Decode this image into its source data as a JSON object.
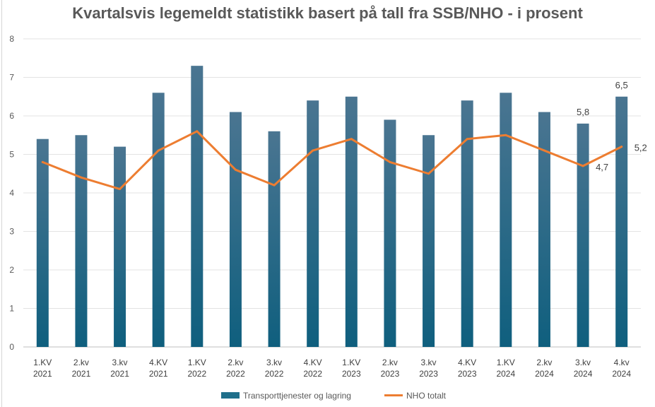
{
  "title": "Kvartalsvis legemeldt statistikk basert på tall fra SSB/NHO - i prosent",
  "chart_data": {
    "type": "bar",
    "title": "Kvartalsvis legemeldt statistikk basert på tall fra SSB/NHO - i prosent",
    "categories": [
      [
        "1.KV",
        "2021"
      ],
      [
        "2.kv",
        "2021"
      ],
      [
        "3.kv",
        "2021"
      ],
      [
        "4.KV",
        "2021"
      ],
      [
        "1.KV",
        "2022"
      ],
      [
        "2.kv",
        "2022"
      ],
      [
        "3.kv",
        "2022"
      ],
      [
        "4.KV",
        "2022"
      ],
      [
        "1.KV",
        "2023"
      ],
      [
        "2.kv",
        "2023"
      ],
      [
        "3.kv",
        "2023"
      ],
      [
        "4.KV",
        "2023"
      ],
      [
        "1.KV",
        "2024"
      ],
      [
        "2.kv",
        "2024"
      ],
      [
        "3.kv",
        "2024"
      ],
      [
        "4.kv",
        "2024"
      ]
    ],
    "series": [
      {
        "name": "Transporttjenester og lagring",
        "type": "bar",
        "color": "#1f6f8b",
        "values": [
          5.4,
          5.5,
          5.2,
          6.6,
          7.3,
          6.1,
          5.6,
          6.4,
          6.5,
          5.9,
          5.5,
          6.4,
          6.6,
          6.1,
          5.8,
          6.5
        ],
        "data_labels": [
          {
            "index": 14,
            "text": "5,8"
          },
          {
            "index": 15,
            "text": "6,5"
          }
        ]
      },
      {
        "name": "NHO totalt",
        "type": "line",
        "color": "#ed7d31",
        "values": [
          4.8,
          4.4,
          4.1,
          5.1,
          5.6,
          4.6,
          4.2,
          5.1,
          5.4,
          4.8,
          4.5,
          5.4,
          5.5,
          5.1,
          4.7,
          5.2
        ],
        "data_labels": [
          {
            "index": 14,
            "text": "4,7"
          },
          {
            "index": 15,
            "text": "5,2"
          }
        ]
      }
    ],
    "ylim": [
      0,
      8
    ],
    "yticks": [
      0,
      1,
      2,
      3,
      4,
      5,
      6,
      7,
      8
    ],
    "xlabel": "",
    "ylabel": "",
    "grid": true,
    "legend_position": "bottom"
  }
}
